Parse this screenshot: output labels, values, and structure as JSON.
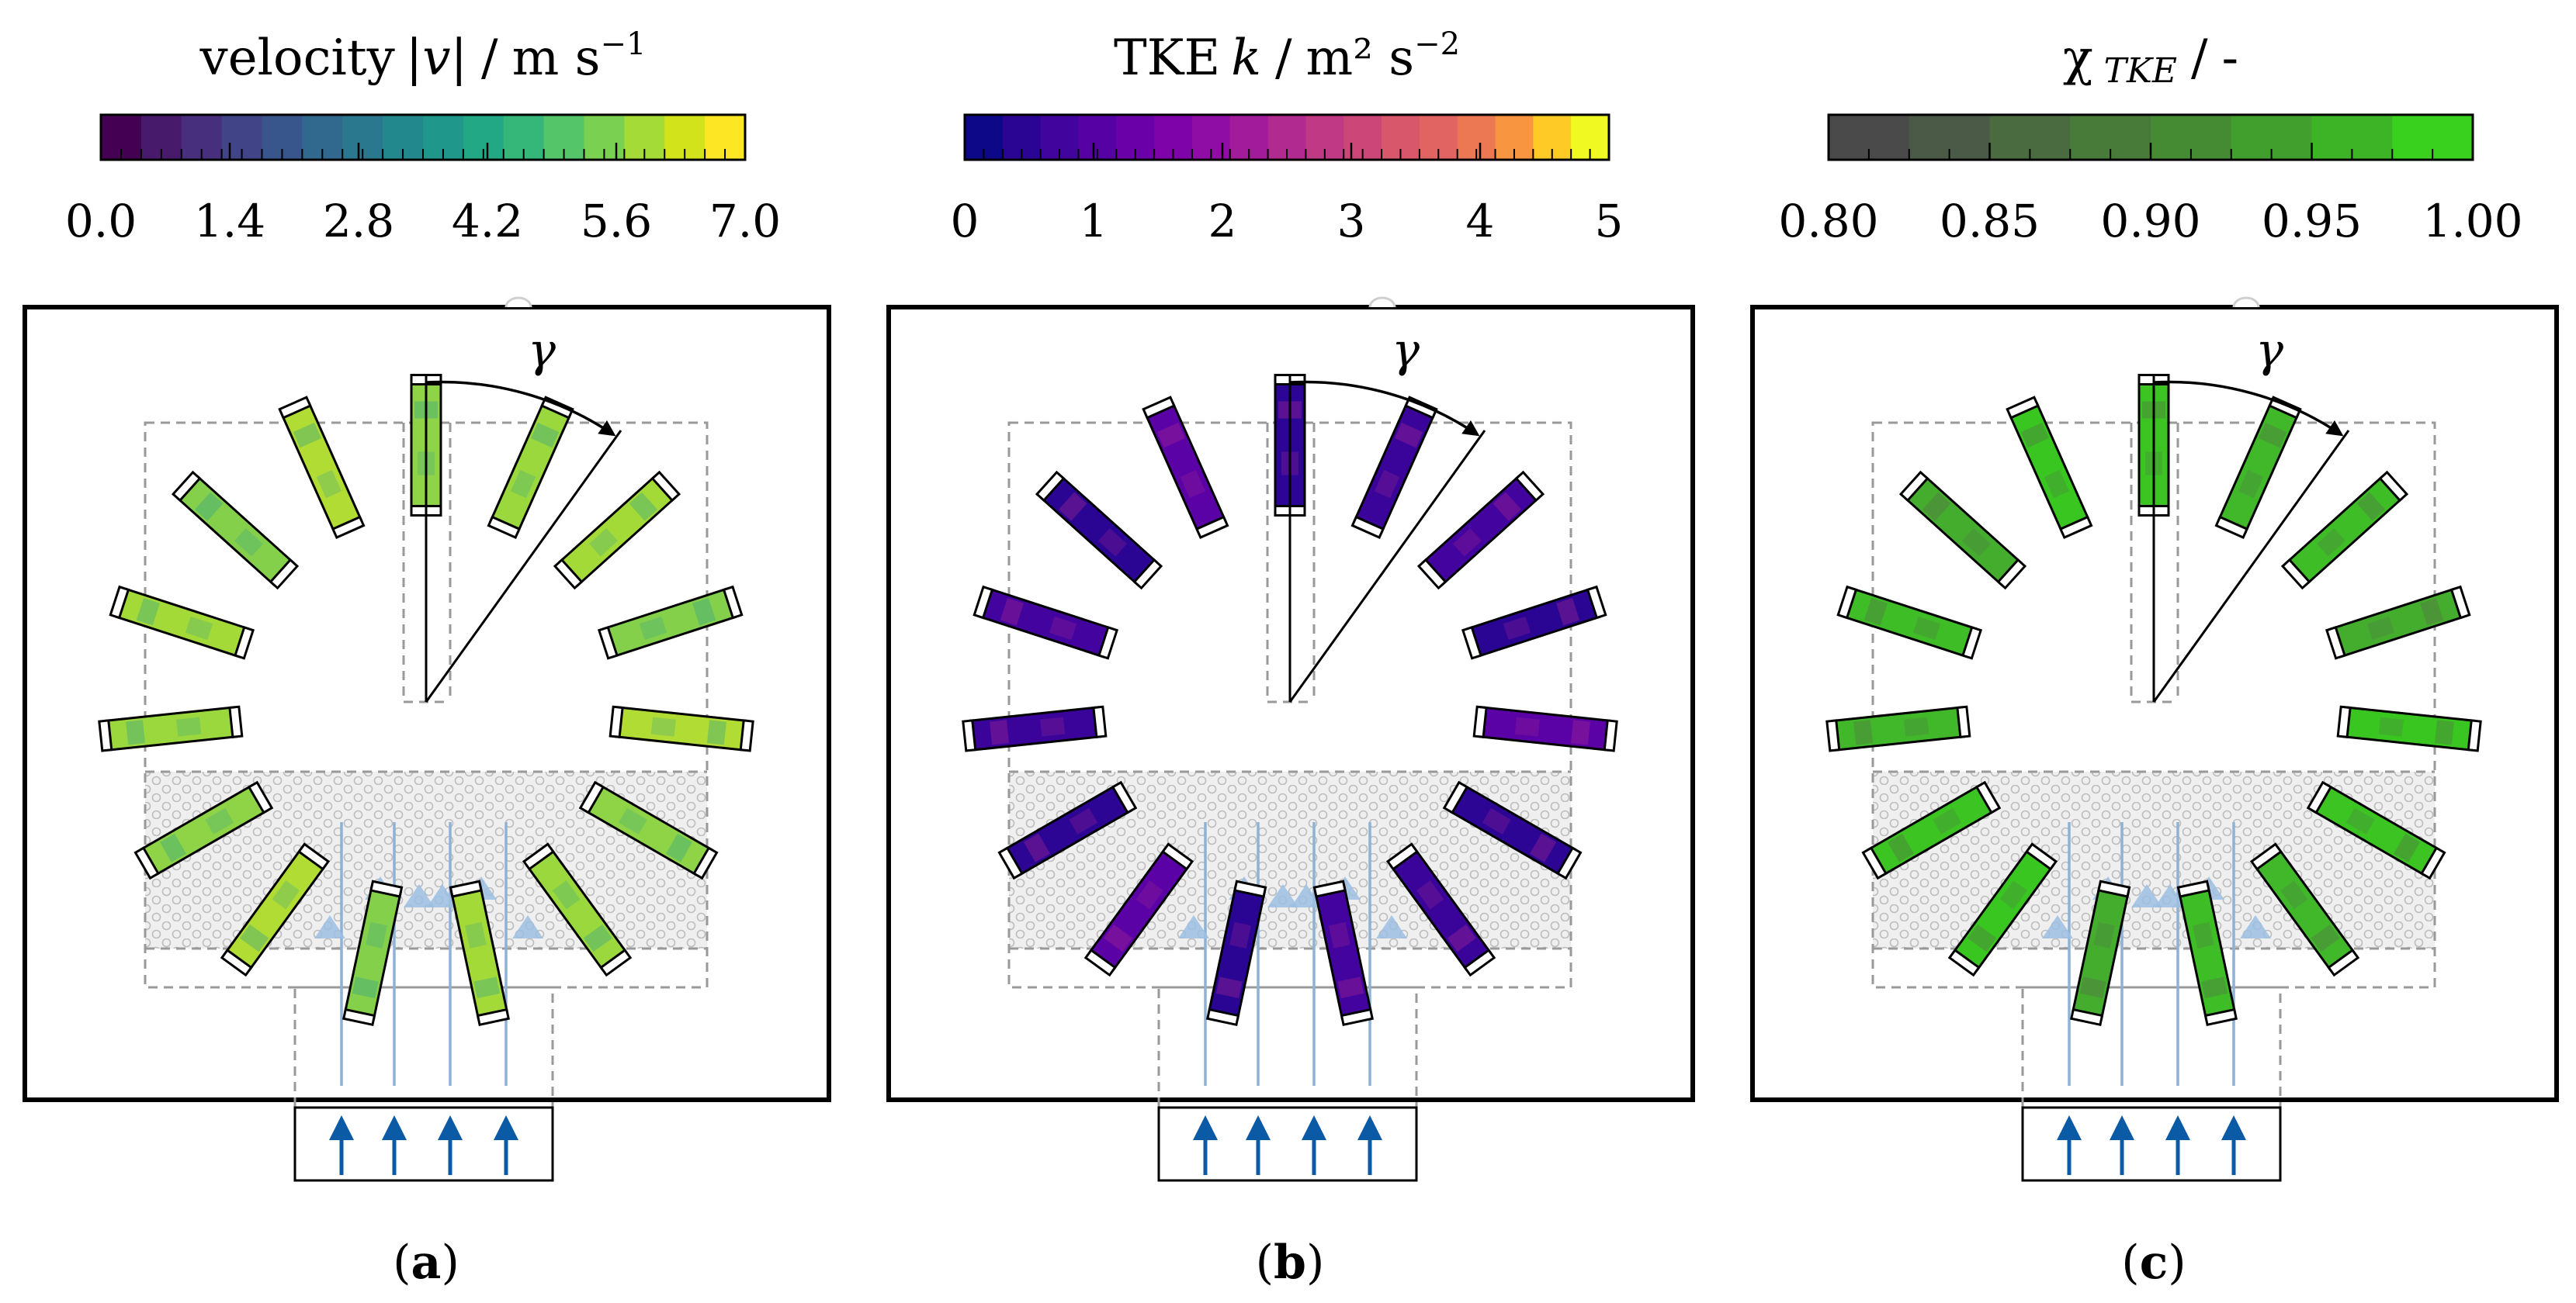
{
  "panels": [
    {
      "id": "a",
      "caption_letter": "a",
      "colorbar": {
        "label_main": "velocity",
        "label_var": "|v|",
        "label_sep": "/",
        "label_unit": "m s",
        "label_exp": "−1",
        "ticks": [
          "0.0",
          "1.4",
          "2.8",
          "4.2",
          "5.6",
          "7.0"
        ],
        "colors": [
          "#440154",
          "#481a6c",
          "#472f7d",
          "#414487",
          "#39568c",
          "#31688e",
          "#2a788e",
          "#23888e",
          "#1f988b",
          "#22a884",
          "#35b779",
          "#54c568",
          "#7ad151",
          "#a5db36",
          "#d2e21b",
          "#fde725"
        ]
      },
      "field_colors": [
        "#8fd446",
        "#9ad83e",
        "#a4da38",
        "#84d04b",
        "#b0dc34"
      ],
      "accent_color": "#2a9d8f",
      "angle_symbol": "γ"
    },
    {
      "id": "b",
      "caption_letter": "b",
      "colorbar": {
        "label_main": "TKE",
        "label_var": "k",
        "label_sep": "/",
        "label_unit": "m² s",
        "label_exp": "−2",
        "ticks": [
          "0",
          "1",
          "2",
          "3",
          "4",
          "5"
        ],
        "colors": [
          "#0d0887",
          "#2a0593",
          "#41049d",
          "#5601a4",
          "#6a00a8",
          "#7e03a8",
          "#8f0da4",
          "#a11b9b",
          "#b12a90",
          "#bf3984",
          "#cc4778",
          "#d8576b",
          "#e16462",
          "#ec7853",
          "#f89540",
          "#fdca26",
          "#f0f921"
        ]
      },
      "field_colors": [
        "#2c0594",
        "#3a049a",
        "#43039e",
        "#2a0593",
        "#5a02a6"
      ],
      "accent_color": "#b12a90",
      "angle_symbol": "γ"
    },
    {
      "id": "c",
      "caption_letter": "c",
      "colorbar": {
        "label_main": "χ",
        "label_var": "TKE",
        "label_sep": "/",
        "label_unit": "-",
        "label_exp": "",
        "ticks": [
          "0.80",
          "0.85",
          "0.90",
          "0.95",
          "1.00"
        ],
        "colors": [
          "#4a4a4a",
          "#4b5a46",
          "#4a6a40",
          "#487a3a",
          "#458b34",
          "#41a02d",
          "#3db426",
          "#3ad01e"
        ]
      },
      "field_colors": [
        "#3cc423",
        "#41b82a",
        "#3fbd27",
        "#45ad2e",
        "#3ac620"
      ],
      "accent_color": "#556b4a",
      "angle_symbol": "γ"
    }
  ],
  "colors": {
    "frame": "#000000",
    "dashed": "#999999",
    "grid_fill": "#ececec",
    "grid_stroke": "#bdbdbd",
    "stream": "#8fb1d6",
    "inlet_arrow": "#0b5aa6"
  }
}
